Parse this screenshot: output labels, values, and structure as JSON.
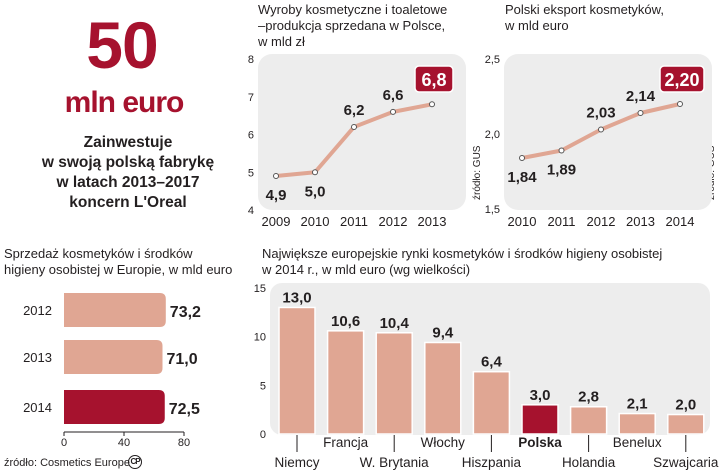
{
  "headline": {
    "number": "50",
    "unit": "mln euro",
    "lines": [
      "Zainwestuje",
      "w swoją polską fabrykę",
      "w latach 2013–2017",
      "koncern L'Oreal"
    ]
  },
  "colors": {
    "accent": "#a6122e",
    "bar": "#e0a693",
    "line": "#e0a693",
    "panel": "#ededed"
  },
  "chart_data": [
    {
      "id": "production",
      "type": "line",
      "title_lines": [
        "Wyroby kosmetyczne i toaletowe",
        "–produkcja sprzedana w Polsce,",
        "w mld zł"
      ],
      "x": [
        "2009",
        "2010",
        "2011",
        "2012",
        "2013"
      ],
      "values": [
        4.9,
        5.0,
        6.2,
        6.6,
        6.8
      ],
      "labels": [
        "4,9",
        "5,0",
        "6,2",
        "6,6",
        "6,8"
      ],
      "ylim": [
        4,
        8
      ],
      "yticks": [
        "4",
        "5",
        "6",
        "7",
        "8"
      ],
      "highlight_last": true
    },
    {
      "id": "export",
      "type": "line",
      "title_lines": [
        "Polski eksport kosmetyków,",
        "w mld euro"
      ],
      "x": [
        "2010",
        "2011",
        "2012",
        "2013",
        "2014"
      ],
      "values": [
        1.84,
        1.89,
        2.03,
        2.14,
        2.2
      ],
      "labels": [
        "1,84",
        "1,89",
        "2,03",
        "2,14",
        "2,20"
      ],
      "ylim": [
        1.5,
        2.5
      ],
      "yticks": [
        "1,5",
        "2,0",
        "2,5"
      ],
      "source": "źródło: GUS",
      "highlight_last": true
    },
    {
      "id": "europe_sales",
      "type": "bar",
      "orientation": "horizontal",
      "title_lines": [
        "Sprzedaż kosmetyków i środków",
        "higieny osobistej w Europie, w mld euro"
      ],
      "categories": [
        "2012",
        "2013",
        "2014"
      ],
      "values": [
        73.2,
        71.0,
        72.5
      ],
      "labels": [
        "73,2",
        "71,0",
        "72,5"
      ],
      "xlim": [
        0,
        80
      ],
      "xticks": [
        "0",
        "40",
        "80"
      ],
      "source": "źródło: Cosmetics Europe",
      "highlight_index": 2
    },
    {
      "id": "markets",
      "type": "bar",
      "title_lines": [
        "Największe europejskie rynki  kosmetyków i środków higieny osobistej",
        "w 2014 r., w mld euro (wg wielkości)"
      ],
      "categories": [
        "Niemcy",
        "Francja",
        "W. Brytania",
        "Włochy",
        "Hiszpania",
        "Polska",
        "Holandia",
        "Benelux",
        "Szwajcaria"
      ],
      "values": [
        13.0,
        10.6,
        10.4,
        9.4,
        6.4,
        3.0,
        2.8,
        2.1,
        2.0
      ],
      "labels": [
        "13,0",
        "10,6",
        "10,4",
        "9,4",
        "6,4",
        "3,0",
        "2,8",
        "2,1",
        "2,0"
      ],
      "ylim": [
        0,
        15
      ],
      "yticks": [
        "0",
        "5",
        "10",
        "15"
      ],
      "source": "źródło: GUS",
      "highlight_index": 5
    }
  ],
  "copyright": "CP"
}
